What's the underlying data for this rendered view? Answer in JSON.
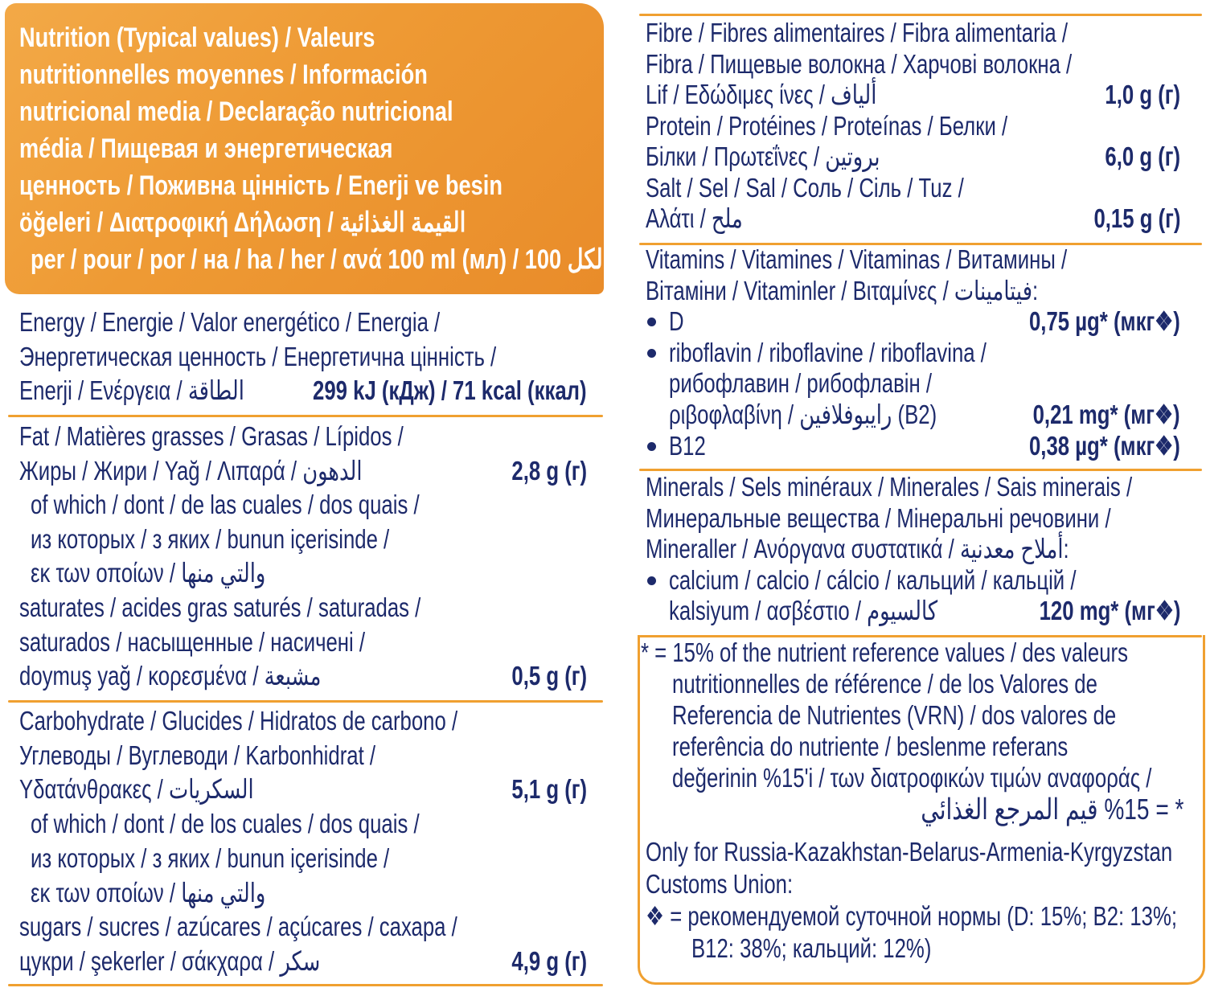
{
  "colors": {
    "text": "#1d2a6b",
    "accent": "#f0a030",
    "header_bg": "#ee9a34",
    "header_text": "#ffffff"
  },
  "header": {
    "lines": [
      "Nutrition (Typical values) / Valeurs",
      "nutritionnelles moyennes / Información",
      "nutricional media / Declaração nutricional",
      "média / Пищевая и энергетическая",
      "ценность / Поживна цінність / Enerji ve besin",
      "öğeleri / Διατροφική Δήλωση / القيمة الغذائية",
      "per / pour / por / на / ha / her / ανά 100 ml (мл) / لكل 100"
    ]
  },
  "left": {
    "sections": [
      {
        "lines": [
          {
            "text": "Energy / Energie / Valor energético / Energia /"
          },
          {
            "text": "Энергетическая ценность / Енергетична цінність /"
          },
          {
            "text": "Enerji / Ενέργεια / الطاقة",
            "value": "299 kJ (кДж) / 71 kcal (ккал)"
          }
        ]
      },
      {
        "lines": [
          {
            "text": "Fat / Matières grasses / Grasas / Lípidos /"
          },
          {
            "text": "Жиры / Жири / Yağ / Λιπαρά / الدهون",
            "value": "2,8 g (г)"
          },
          {
            "text": "of which / dont / de las cuales / dos quais /"
          },
          {
            "text": "из которых / з яких / bunun içerisinde /"
          },
          {
            "text": "εκ των οποίων / والتي منها"
          },
          {
            "text": "saturates / acides gras saturés / saturadas /"
          },
          {
            "text": "saturados / насыщенные / насичені /"
          },
          {
            "text": "doymuş yağ / κορεσμένα / مشبعة",
            "value": "0,5 g (г)"
          }
        ]
      },
      {
        "lines": [
          {
            "text": "Carbohydrate / Glucides / Hidratos de carbono /"
          },
          {
            "text": "Углеводы / Вуглеводи / Karbonhidrat /"
          },
          {
            "text": "Υδατάνθρακες / السكريات",
            "value": "5,1 g (г)"
          },
          {
            "text": "of which / dont / de los cuales / dos quais /"
          },
          {
            "text": "из которых / з яких / bunun içerisinde /"
          },
          {
            "text": "εκ των οποίων / والتي منها"
          },
          {
            "text": "sugars / sucres / azúcares / açúcares / сахара /"
          },
          {
            "text": "цукри / şekerler / σάκχαρα / سكر",
            "value": "4,9 g (г)"
          }
        ]
      }
    ]
  },
  "right": {
    "sections": [
      {
        "lines": [
          {
            "text": "Fibre / Fibres alimentaires / Fibra alimentaria /"
          },
          {
            "text": "Fibra / Пищевые волокна / Харчові волокна /"
          },
          {
            "text": "Lif / Εδώδιμες ίνες / ألياف",
            "value": "1,0 g (г)"
          },
          {
            "text": "Protein / Protéines / Proteínas / Белки /"
          },
          {
            "text": "Білки / Πρωτεΐνες / بروتين",
            "value": "6,0 g (г)"
          },
          {
            "text": "Salt / Sel / Sal / Соль / Сіль / Tuz /"
          },
          {
            "text": "Αλάτι / ملح",
            "value": "0,15 g (г)"
          }
        ]
      },
      {
        "lines": [
          {
            "text": "Vitamins / Vitamines / Vitaminas / Витамины /"
          },
          {
            "text": "Вітаміни / Vitaminler / Βιταμίνες / فيتامينات:"
          },
          {
            "text": "D",
            "value": "0,75 µg* (мкг❖)"
          },
          {
            "text": "riboflavin / riboflavine / riboflavina /"
          },
          {
            "text": "рибофлавин / рибофлавін /"
          },
          {
            "text": "ριβοφλαβίνη / رايبوفلافين (B2)",
            "value": "0,21 mg* (мг❖)"
          },
          {
            "text": "B12",
            "value": "0,38 µg* (мкг❖)"
          }
        ]
      },
      {
        "lines": [
          {
            "text": "Minerals / Sels minéraux / Minerales / Sais minerais /"
          },
          {
            "text": "Минеральные вещества / Мінеральні речовини /"
          },
          {
            "text": "Mineraller / Ανόργανα συστατικά / أملاح معدنية:"
          },
          {
            "text": "calcium / calcio / cálcio / кальций / кальцій /"
          },
          {
            "text": "kalsiyum / ασβέστιο / كالسيوم",
            "value": "120 mg* (мг❖)"
          }
        ]
      },
      {
        "lines": [
          {
            "text": "* = 15% of the nutrient reference values / des valeurs"
          },
          {
            "text": "nutritionnelles de référence / de los Valores de"
          },
          {
            "text": "Referencia de Nutrientes (VRN) / dos valores de"
          },
          {
            "text": "referência do nutriente / beslenme referans"
          },
          {
            "text": "değerinin %15'i / των διατροφικών τιμών αναφοράς /"
          },
          {
            "text": "* = %15 قيم المرجع الغذائي"
          }
        ]
      },
      {
        "lines": [
          {
            "text": "Only for Russia-Kazakhstan-Belarus-Armenia-Kyrgyzstan"
          },
          {
            "text": "Customs Union:"
          },
          {
            "text": "❖ = рекомендуемой суточной нормы (D: 15%; B2: 13%;"
          },
          {
            "text": "B12: 38%; кальций: 12%)"
          }
        ]
      }
    ]
  }
}
